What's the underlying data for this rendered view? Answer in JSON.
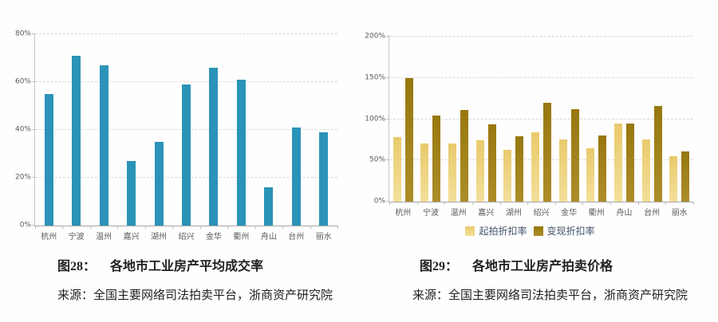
{
  "chart_data": [
    {
      "type": "bar",
      "figure_label": "图28：",
      "title": "各地市工业房产平均成交率",
      "source": "来源：全国主要网络司法拍卖平台，浙商资产研究院",
      "categories": [
        "杭州",
        "宁波",
        "温州",
        "嘉兴",
        "湖州",
        "绍兴",
        "金华",
        "衢州",
        "舟山",
        "台州",
        "丽水"
      ],
      "values": [
        55,
        71,
        67,
        27,
        35,
        59,
        66,
        61,
        16,
        41,
        39
      ],
      "unit": "%",
      "ylim": [
        0,
        80
      ],
      "yticks": [
        "0%",
        "20%",
        "40%",
        "60%",
        "80%"
      ],
      "xlabel": "",
      "ylabel": "",
      "grid": "horizontal-dashed",
      "bar_color": "#2a93b7",
      "axis_text_color": "#595959"
    },
    {
      "type": "bar",
      "figure_label": "图29：",
      "title": "各地市工业房产拍卖价格",
      "source": "来源：全国主要网络司法拍卖平台，浙商资产研究院",
      "categories": [
        "杭州",
        "宁波",
        "温州",
        "嘉兴",
        "湖州",
        "绍兴",
        "金华",
        "衢州",
        "舟山",
        "台州",
        "丽水"
      ],
      "series": [
        {
          "name": "起拍折扣率",
          "color": "#ecd07b",
          "color_top": "#e9ca6c",
          "color_bottom": "#f3df9a",
          "values": [
            78,
            71,
            71,
            74,
            63,
            84,
            75,
            65,
            95,
            75,
            55
          ]
        },
        {
          "name": "变现折扣率",
          "color": "#a2821b",
          "color_top": "#97770e",
          "color_bottom": "#ad8d28",
          "values": [
            150,
            104,
            111,
            94,
            79,
            120,
            112,
            80,
            95,
            116,
            61
          ]
        }
      ],
      "unit": "%",
      "ylim": [
        0,
        200
      ],
      "yticks": [
        "0%",
        "50%",
        "100%",
        "150%",
        "200%"
      ],
      "xlabel": "",
      "ylabel": "",
      "grid": "horizontal-dashed",
      "legend_position": "bottom",
      "legend_text_color": "#44546a",
      "axis_text_color": "#595959"
    }
  ]
}
